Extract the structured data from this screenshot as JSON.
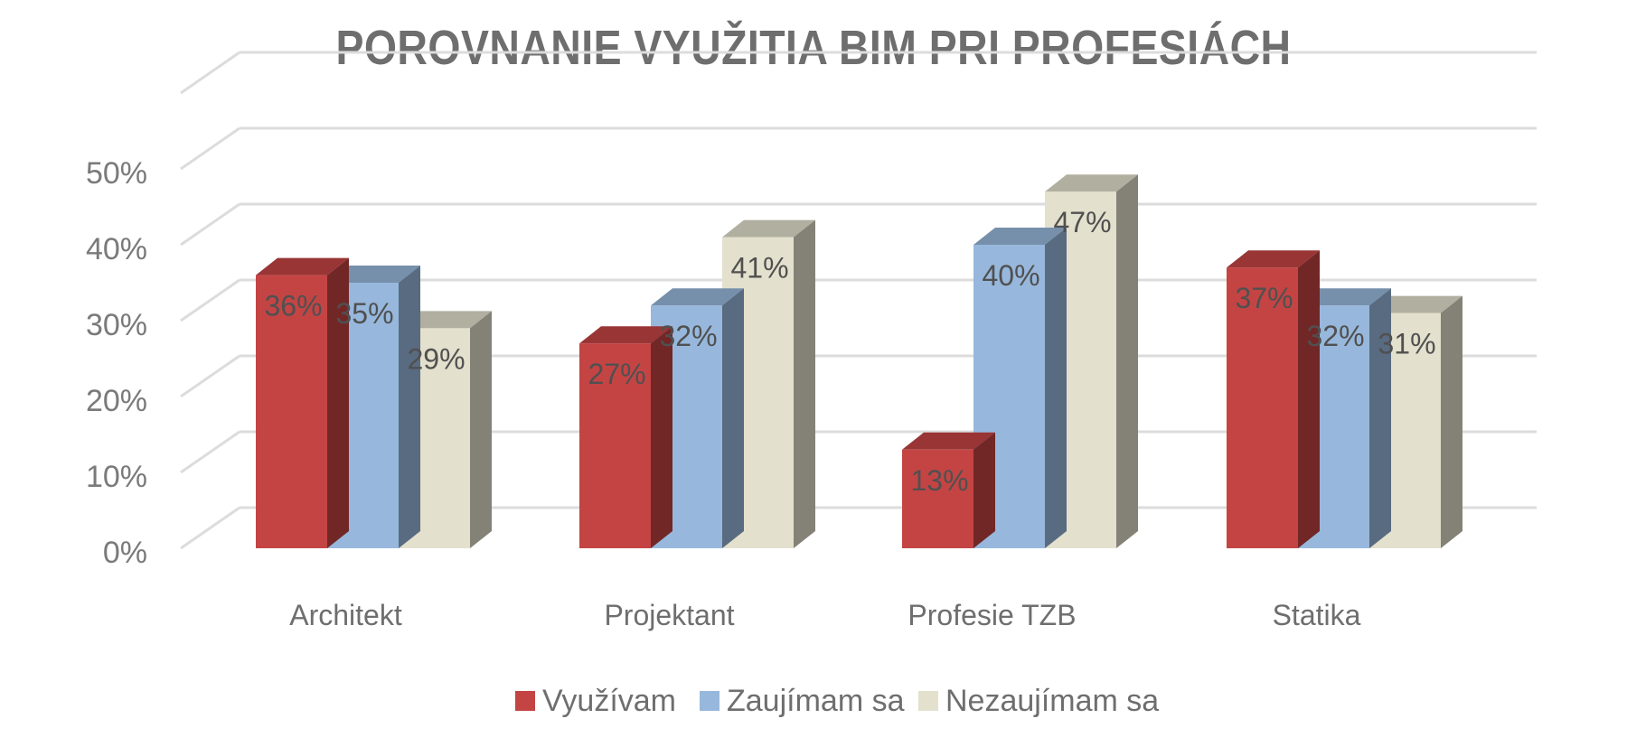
{
  "chart_data": {
    "type": "bar",
    "title": "POROVNANIE VYUŽITIA BIM PRI PROFESIÁCH",
    "categories": [
      "Architekt",
      "Projektant",
      "Profesie TZB",
      "Statika"
    ],
    "series": [
      {
        "name": "Využívam",
        "values": [
          36,
          27,
          13,
          37
        ],
        "labels": [
          "36%",
          "27%",
          "13%",
          "37%"
        ],
        "color": "#c44444"
      },
      {
        "name": "Zaujímam sa",
        "values": [
          35,
          32,
          40,
          32
        ],
        "labels": [
          "35%",
          "32%",
          "40%",
          "32%"
        ],
        "color": "#97b8dc"
      },
      {
        "name": "Nezaujímam sa",
        "values": [
          29,
          41,
          47,
          31
        ],
        "labels": [
          "29%",
          "41%",
          "47%",
          "31%"
        ],
        "color": "#e3e0cd"
      }
    ],
    "y_ticks": [
      "0%",
      "10%",
      "20%",
      "30%",
      "40%",
      "50%"
    ],
    "ylim": [
      0,
      50
    ],
    "xlabel": "",
    "ylabel": "",
    "grid": true,
    "legend_position": "bottom",
    "style": "3d-clustered-column"
  }
}
